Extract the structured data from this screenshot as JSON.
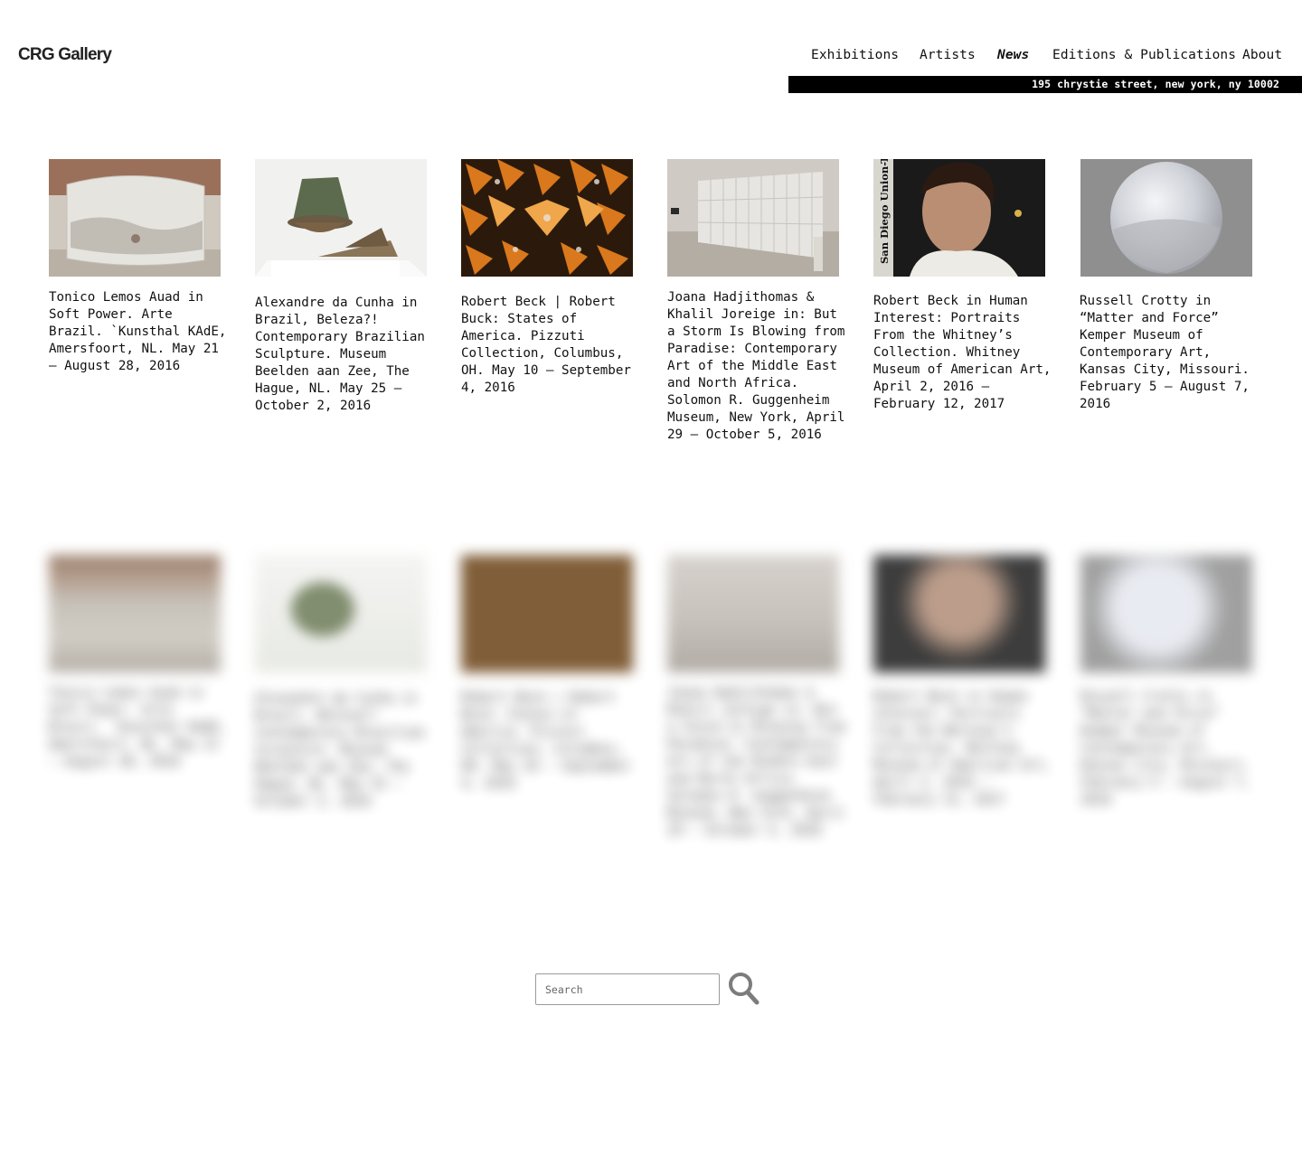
{
  "header": {
    "logo": "CRG Gallery",
    "nav": [
      {
        "label": "Exhibitions",
        "active": false
      },
      {
        "label": "Artists",
        "active": false
      },
      {
        "label": "News",
        "active": true
      },
      {
        "label": "Editions & Publications",
        "active": false
      },
      {
        "label": "About",
        "active": false
      }
    ],
    "address": "195 chrystie street, new york, ny 10002"
  },
  "news": [
    {
      "caption": "Tonico Lemos Auad in Soft Power. Arte Brazil. `Kunsthal KAdE, Amersfoort, NL. May 21 — August 28, 2016"
    },
    {
      "caption": "Alexandre da Cunha in Brazil, Beleza?! Contemporary Brazilian Sculpture. Museum Beelden aan Zee, The Hague, NL. May 25 — October 2, 2016"
    },
    {
      "caption": "Robert Beck | Robert Buck: States of America. Pizzuti Collection, Columbus, OH. May 10 — September 4, 2016"
    },
    {
      "caption": "Joana Hadjithomas & Khalil Joreige in: But a Storm Is Blowing from Paradise: Contemporary Art of the Middle East and North Africa. Solomon R. Guggenheim Museum, New York, April 29 — October 5, 2016"
    },
    {
      "caption": "Robert Beck in Human Interest: Portraits From the Whitney’s Collection. Whitney Museum of American Art, April 2, 2016 — February 12, 2017",
      "thumb_text": "San Diego Union-Trib"
    },
    {
      "caption": "Russell Crotty in “Matter and Force” Kemper Museum of Contemporary Art, Kansas City, Missouri. February 5 — August 7, 2016"
    }
  ],
  "search": {
    "placeholder": "Search",
    "value": ""
  }
}
